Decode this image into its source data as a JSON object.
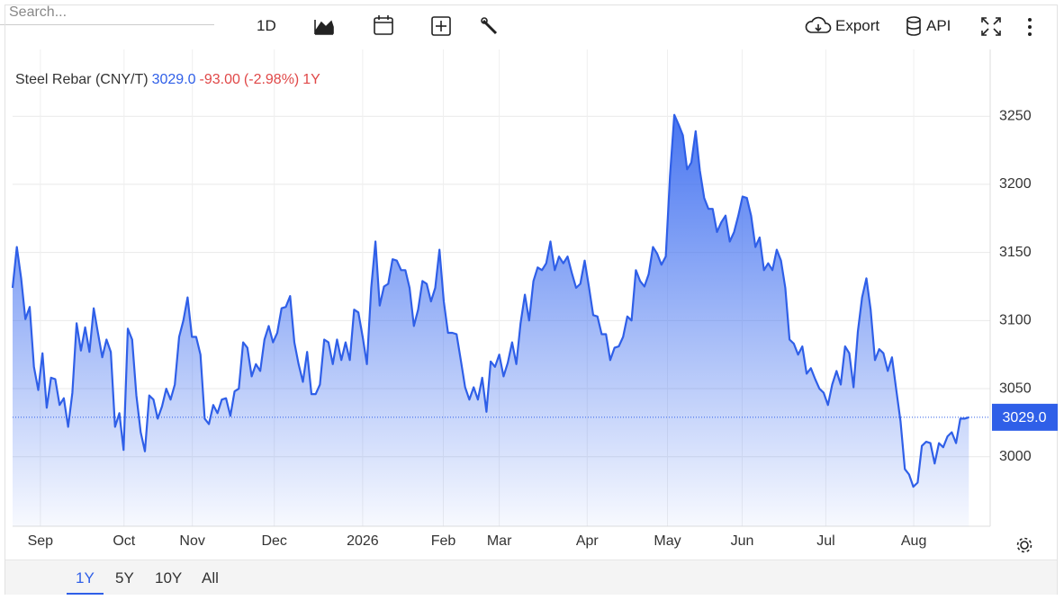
{
  "ui": {
    "search_placeholder": "Search...",
    "interval": "1D",
    "export": "Export",
    "api": "API",
    "ranges": [
      "1Y",
      "5Y",
      "10Y",
      "All"
    ]
  },
  "chart_data": {
    "type": "area",
    "title": "Steel Rebar (CNY/T)",
    "price": "3029.0",
    "change": "-93.00",
    "change_pct": "(-2.98%)",
    "period": "1Y",
    "color": "#2f5fe8",
    "grid": true,
    "values": [
      3124,
      3154,
      3131,
      3101,
      3110,
      3066,
      3049,
      3076,
      3036,
      3058,
      3057,
      3038,
      3043,
      3022,
      3047,
      3098,
      3078,
      3095,
      3077,
      3109,
      3091,
      3073,
      3086,
      3077,
      3022,
      3032,
      3005,
      3094,
      3086,
      3045,
      3018,
      3004,
      3045,
      3042,
      3028,
      3037,
      3050,
      3042,
      3053,
      3088,
      3100,
      3117,
      3088,
      3088,
      3075,
      3028,
      3024,
      3038,
      3032,
      3042,
      3043,
      3030,
      3048,
      3050,
      3084,
      3080,
      3059,
      3068,
      3063,
      3086,
      3096,
      3084,
      3091,
      3109,
      3110,
      3118,
      3084,
      3068,
      3055,
      3077,
      3046,
      3046,
      3053,
      3086,
      3084,
      3068,
      3086,
      3071,
      3084,
      3071,
      3108,
      3106,
      3088,
      3068,
      3124,
      3158,
      3111,
      3125,
      3127,
      3145,
      3144,
      3137,
      3137,
      3124,
      3096,
      3108,
      3129,
      3127,
      3114,
      3124,
      3152,
      3114,
      3091,
      3091,
      3090,
      3071,
      3051,
      3042,
      3051,
      3042,
      3058,
      3033,
      3070,
      3066,
      3075,
      3059,
      3069,
      3084,
      3068,
      3098,
      3119,
      3100,
      3129,
      3139,
      3137,
      3142,
      3158,
      3137,
      3147,
      3142,
      3147,
      3135,
      3124,
      3127,
      3144,
      3125,
      3104,
      3103,
      3090,
      3090,
      3071,
      3080,
      3081,
      3088,
      3103,
      3100,
      3137,
      3129,
      3125,
      3134,
      3154,
      3149,
      3141,
      3147,
      3206,
      3251,
      3244,
      3236,
      3211,
      3216,
      3239,
      3210,
      3190,
      3182,
      3182,
      3165,
      3172,
      3177,
      3158,
      3165,
      3177,
      3191,
      3190,
      3177,
      3154,
      3161,
      3137,
      3142,
      3137,
      3152,
      3144,
      3124,
      3086,
      3083,
      3075,
      3081,
      3061,
      3065,
      3057,
      3050,
      3047,
      3038,
      3053,
      3063,
      3053,
      3081,
      3076,
      3051,
      3092,
      3117,
      3131,
      3108,
      3071,
      3079,
      3076,
      3063,
      3073,
      3049,
      3026,
      2991,
      2987,
      2978,
      2981,
      3008,
      3011,
      3010,
      2995,
      3010,
      3007,
      3015,
      3018,
      3010,
      3028,
      3028,
      3029
    ],
    "xlim": [
      0,
      229
    ],
    "xticks": [
      {
        "value": 6.5,
        "label": "Sep"
      },
      {
        "value": 26.1,
        "label": "Oct"
      },
      {
        "value": 42.1,
        "label": "Nov"
      },
      {
        "value": 61.3,
        "label": "Dec"
      },
      {
        "value": 82,
        "label": "2026"
      },
      {
        "value": 100.9,
        "label": "Feb"
      },
      {
        "value": 114,
        "label": "Mar"
      },
      {
        "value": 134.6,
        "label": "Apr"
      },
      {
        "value": 153.4,
        "label": "May"
      },
      {
        "value": 170.9,
        "label": "Jun"
      },
      {
        "value": 190.5,
        "label": "Jul"
      },
      {
        "value": 211.1,
        "label": "Aug"
      }
    ],
    "ylim": [
      2949,
      3299
    ],
    "yticks": [
      3000,
      3050,
      3100,
      3150,
      3200,
      3250
    ]
  }
}
